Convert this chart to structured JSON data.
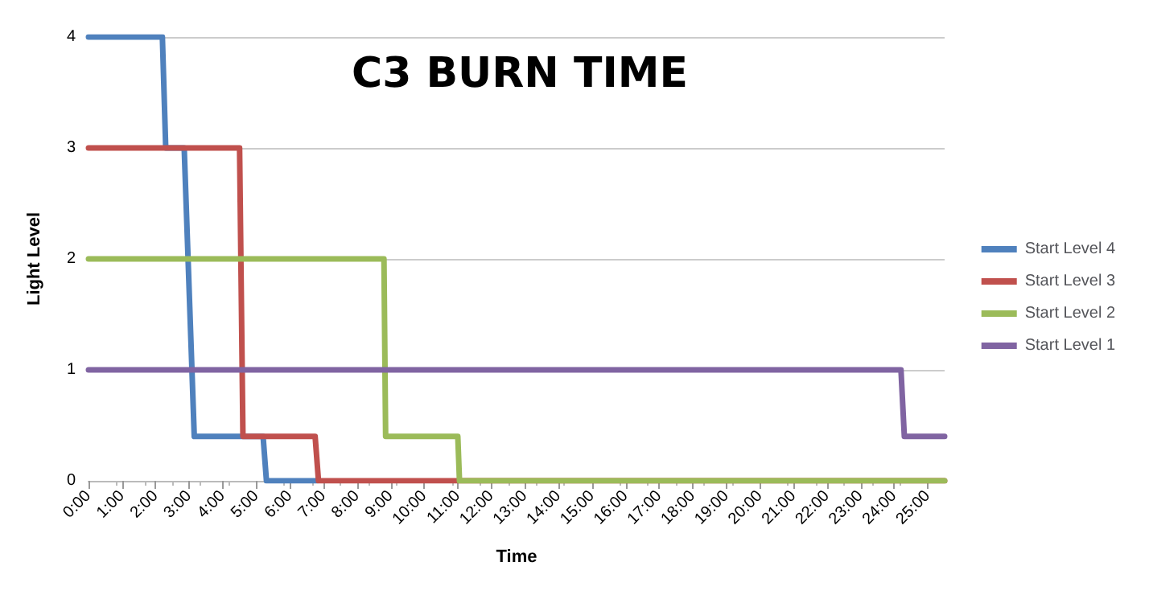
{
  "chart_data": {
    "type": "line",
    "title": "C3 BURN TIME",
    "xlabel": "Time",
    "ylabel": "Light Level",
    "xlim": [
      0,
      25.5
    ],
    "ylim": [
      0,
      4
    ],
    "yticks": [
      0,
      1,
      2,
      3,
      4
    ],
    "xticks": [
      {
        "value": 0,
        "label": "0:00"
      },
      {
        "value": 1,
        "label": "1:00"
      },
      {
        "value": 2,
        "label": "2:00"
      },
      {
        "value": 3,
        "label": "3:00"
      },
      {
        "value": 4,
        "label": "4:00"
      },
      {
        "value": 5,
        "label": "5:00"
      },
      {
        "value": 6,
        "label": "6:00"
      },
      {
        "value": 7,
        "label": "7:00"
      },
      {
        "value": 8,
        "label": "8:00"
      },
      {
        "value": 9,
        "label": "9:00"
      },
      {
        "value": 10,
        "label": "10:00"
      },
      {
        "value": 11,
        "label": "11:00"
      },
      {
        "value": 12,
        "label": "12:00"
      },
      {
        "value": 13,
        "label": "13:00"
      },
      {
        "value": 14,
        "label": "14:00"
      },
      {
        "value": 15,
        "label": "15:00"
      },
      {
        "value": 16,
        "label": "16:00"
      },
      {
        "value": 17,
        "label": "17:00"
      },
      {
        "value": 18,
        "label": "18:00"
      },
      {
        "value": 19,
        "label": "19:00"
      },
      {
        "value": 20,
        "label": "20:00"
      },
      {
        "value": 21,
        "label": "21:00"
      },
      {
        "value": 22,
        "label": "22:00"
      },
      {
        "value": 23,
        "label": "23:00"
      },
      {
        "value": 24,
        "label": "24:00"
      },
      {
        "value": 25,
        "label": "25:00"
      }
    ],
    "grid": "y",
    "legend": "right",
    "marker": "none",
    "line_style": "solid",
    "series": [
      {
        "name": "Start Level 4",
        "color": "#4f81bd",
        "x": [
          0,
          2.2,
          2.3,
          2.85,
          3.15,
          5.2,
          5.3,
          6.8
        ],
        "values": [
          4,
          4,
          3,
          3,
          0.4,
          0.4,
          0,
          0
        ]
      },
      {
        "name": "Start Level 3",
        "color": "#c0504d",
        "x": [
          0,
          4.5,
          4.6,
          6.75,
          6.85,
          25.5
        ],
        "values": [
          3,
          3,
          0.4,
          0.4,
          0,
          0
        ]
      },
      {
        "name": "Start Level 2",
        "color": "#9bbb59",
        "x": [
          0,
          8.8,
          8.85,
          11,
          11.05,
          25.5
        ],
        "values": [
          2,
          2,
          0.4,
          0.4,
          0,
          0
        ]
      },
      {
        "name": "Start Level 1",
        "color": "#8064a2",
        "x": [
          0,
          24.2,
          24.3,
          25.5
        ],
        "values": [
          1,
          1,
          0.4,
          0.4
        ]
      }
    ]
  }
}
